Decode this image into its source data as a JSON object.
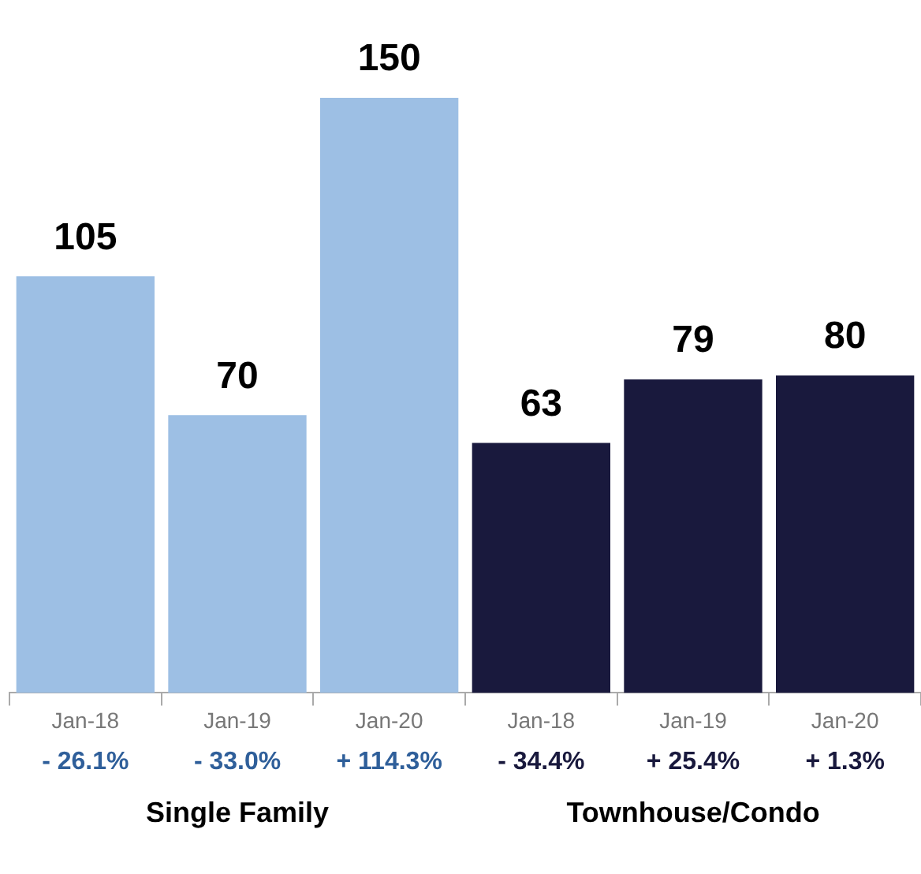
{
  "chart_data": {
    "type": "bar",
    "categories": [
      "Jan-18",
      "Jan-19",
      "Jan-20",
      "Jan-18",
      "Jan-19",
      "Jan-20"
    ],
    "values": [
      105,
      70,
      150,
      63,
      79,
      80
    ],
    "colors": [
      "#9dbfe4",
      "#9dbfe4",
      "#9dbfe4",
      "#19193d",
      "#19193d",
      "#19193d"
    ],
    "data_labels": true,
    "grid": false,
    "legend": false,
    "annotations": [
      "- 26.1%",
      "- 33.0%",
      "+ 114.3%",
      "- 34.4%",
      "+ 25.4%",
      "+ 1.3%",
      "Single Family",
      "Townhouse/Condo"
    ]
  }
}
